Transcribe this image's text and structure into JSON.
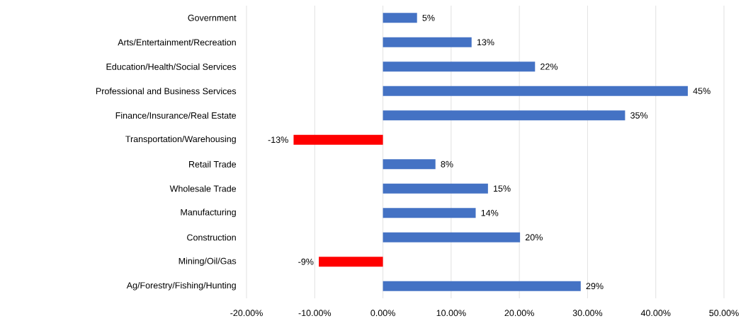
{
  "chart_data": {
    "type": "bar",
    "orientation": "horizontal",
    "categories": [
      "Government",
      "Arts/Entertainment/Recreation",
      "Education/Health/Social Services",
      "Professional and Business Services",
      "Finance/Insurance/Real Estate",
      "Transportation/Warehousing",
      "Retail Trade",
      "Wholesale Trade",
      "Manufacturing",
      "Construction",
      "Mining/Oil/Gas",
      "Ag/Forestry/Fishing/Hunting"
    ],
    "values": [
      5.0,
      13.0,
      22.3,
      44.7,
      35.5,
      -13.1,
      7.7,
      15.4,
      13.6,
      20.1,
      -9.4,
      29.0
    ],
    "value_labels": [
      "5%",
      "13%",
      "22%",
      "45%",
      "35%",
      "-13%",
      "8%",
      "15%",
      "14%",
      "20%",
      "-9%",
      "29%"
    ],
    "colors": [
      "#4472c4",
      "#4472c4",
      "#4472c4",
      "#4472c4",
      "#4472c4",
      "#ff0000",
      "#4472c4",
      "#4472c4",
      "#4472c4",
      "#4472c4",
      "#ff0000",
      "#4472c4"
    ],
    "xlim": [
      -20,
      50
    ],
    "xticks": [
      {
        "value": -20,
        "label": "-20.00%"
      },
      {
        "value": -10,
        "label": "-10.00%"
      },
      {
        "value": 0,
        "label": "0.00%"
      },
      {
        "value": 10,
        "label": "10.00%"
      },
      {
        "value": 20,
        "label": "20.00%"
      },
      {
        "value": 30,
        "label": "30.00%"
      },
      {
        "value": 40,
        "label": "40.00%"
      },
      {
        "value": 50,
        "label": "50.00%"
      }
    ],
    "grid": "x"
  }
}
